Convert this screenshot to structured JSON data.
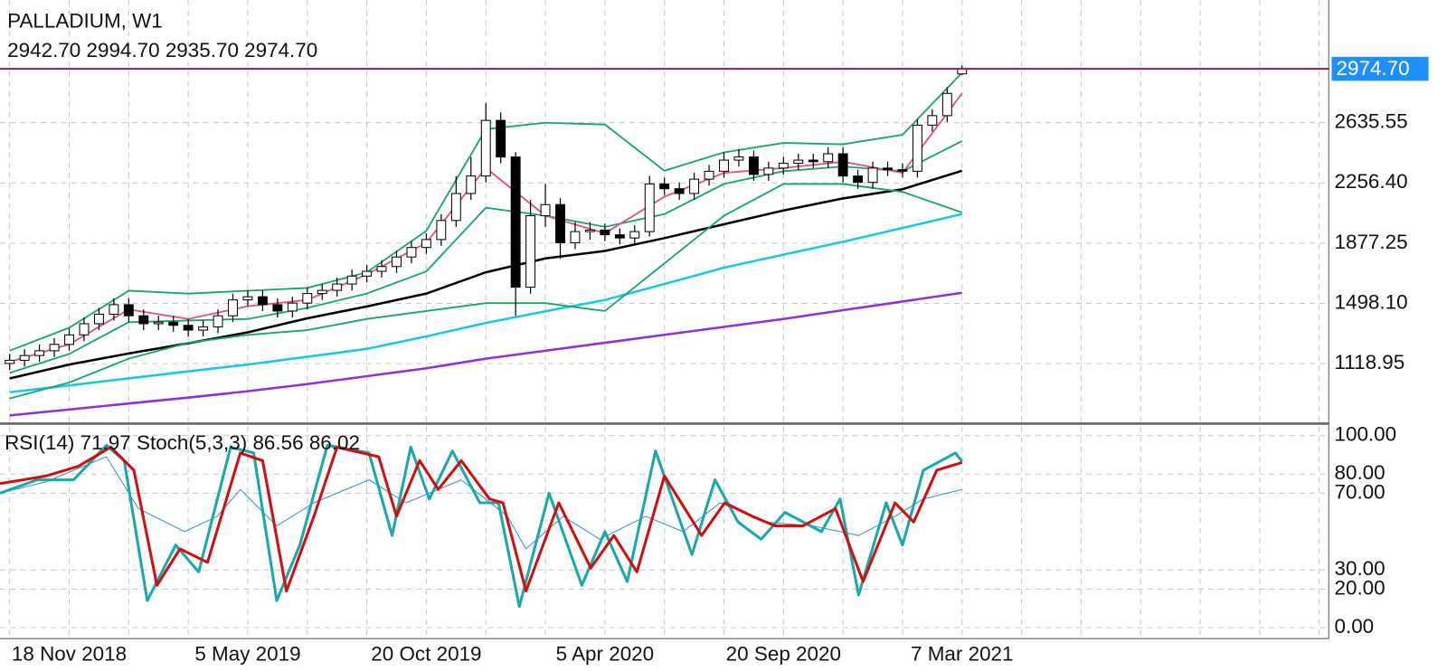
{
  "chart_data": [
    {
      "type": "candlestick",
      "title": "PALLADIUM, W1",
      "subtitle": "2942.70 2994.70 2935.70 2974.70",
      "x": [
        -8,
        -6,
        -4,
        -2,
        0,
        2,
        4,
        6,
        8,
        10,
        12,
        14,
        16,
        18,
        20,
        22,
        24,
        26,
        28,
        30,
        32,
        34,
        36,
        38,
        40,
        42,
        44,
        46,
        48,
        50,
        52,
        54,
        56,
        58,
        60,
        62,
        64,
        66,
        68,
        70,
        72,
        74,
        76,
        78,
        80,
        82,
        84,
        86,
        88,
        90,
        92,
        94,
        96,
        98,
        100,
        102,
        104,
        106,
        108,
        110,
        112,
        114,
        116,
        118,
        120
      ],
      "open": [
        1120,
        1140,
        1170,
        1200,
        1240,
        1300,
        1370,
        1430,
        1490,
        1420,
        1370,
        1380,
        1360,
        1330,
        1350,
        1420,
        1520,
        1540,
        1490,
        1450,
        1500,
        1560,
        1580,
        1620,
        1670,
        1700,
        1730,
        1790,
        1850,
        1900,
        2020,
        2190,
        2300,
        2650,
        2420,
        1600,
        2050,
        2120,
        1880,
        1950,
        1960,
        1930,
        1910,
        1950,
        2250,
        2220,
        2190,
        2280,
        2330,
        2400,
        2420,
        2310,
        2350,
        2380,
        2400,
        2390,
        2440,
        2300,
        2260,
        2350,
        2340,
        2330,
        2620,
        2680,
        2942.7
      ],
      "high": [
        1180,
        1210,
        1240,
        1280,
        1340,
        1410,
        1470,
        1530,
        1530,
        1460,
        1420,
        1420,
        1400,
        1390,
        1460,
        1560,
        1580,
        1580,
        1530,
        1540,
        1600,
        1620,
        1660,
        1710,
        1740,
        1770,
        1830,
        1890,
        1940,
        2060,
        2300,
        2420,
        2760,
        2700,
        2450,
        2150,
        2250,
        2160,
        2010,
        2010,
        2000,
        1970,
        1990,
        2300,
        2290,
        2260,
        2320,
        2370,
        2450,
        2470,
        2460,
        2390,
        2420,
        2440,
        2440,
        2480,
        2480,
        2340,
        2390,
        2390,
        2380,
        2660,
        2720,
        2860,
        2994.7
      ],
      "low": [
        1080,
        1100,
        1130,
        1160,
        1200,
        1260,
        1330,
        1390,
        1380,
        1330,
        1330,
        1320,
        1290,
        1290,
        1310,
        1380,
        1480,
        1450,
        1410,
        1410,
        1460,
        1520,
        1540,
        1580,
        1630,
        1660,
        1690,
        1750,
        1810,
        1860,
        1980,
        2150,
        2260,
        2380,
        1420,
        1560,
        1980,
        1780,
        1840,
        1900,
        1890,
        1870,
        1870,
        1920,
        2180,
        2150,
        2150,
        2240,
        2290,
        2360,
        2270,
        2270,
        2310,
        2340,
        2350,
        2350,
        2260,
        2220,
        2220,
        2300,
        2290,
        2290,
        2580,
        2640,
        2935.7
      ],
      "close": [
        1140,
        1170,
        1200,
        1240,
        1300,
        1370,
        1430,
        1490,
        1420,
        1370,
        1380,
        1360,
        1330,
        1350,
        1420,
        1520,
        1540,
        1490,
        1450,
        1500,
        1560,
        1580,
        1620,
        1670,
        1700,
        1730,
        1790,
        1850,
        1900,
        2020,
        2190,
        2300,
        2650,
        2420,
        1600,
        2050,
        2120,
        1880,
        1950,
        1960,
        1930,
        1910,
        1950,
        2250,
        2220,
        2190,
        2280,
        2330,
        2400,
        2420,
        2310,
        2350,
        2380,
        2400,
        2390,
        2440,
        2300,
        2260,
        2350,
        2340,
        2330,
        2620,
        2680,
        2820,
        2974.7
      ],
      "series": [
        {
          "color": "#000000",
          "x": [
            -8,
            0,
            8,
            16,
            24,
            32,
            40,
            48,
            56,
            64,
            72,
            80,
            88,
            96,
            104,
            112,
            120
          ],
          "values": [
            1026,
            1113,
            1183,
            1247,
            1316,
            1404,
            1479,
            1560,
            1694,
            1781,
            1828,
            1909,
            1996,
            2083,
            2159,
            2217,
            2333
          ]
        },
        {
          "color": "#1cc8e0",
          "x": [
            -8,
            0,
            8,
            16,
            24,
            32,
            40,
            48,
            56,
            64,
            72,
            80,
            88,
            96,
            104,
            112,
            120
          ],
          "values": [
            939,
            982,
            1026,
            1070,
            1113,
            1162,
            1212,
            1290,
            1375,
            1448,
            1520,
            1620,
            1723,
            1805,
            1886,
            1973,
            2060
          ]
        },
        {
          "color": "#9030d8",
          "x": [
            -8,
            0,
            8,
            16,
            24,
            32,
            40,
            48,
            56,
            64,
            72,
            80,
            88,
            96,
            104,
            112,
            120
          ],
          "values": [
            793,
            830,
            868,
            905,
            945,
            990,
            1040,
            1090,
            1150,
            1200,
            1250,
            1300,
            1350,
            1400,
            1455,
            1510,
            1565
          ]
        },
        {
          "color": "#1aa56a",
          "x": [
            -8,
            0,
            8,
            16,
            24,
            32,
            40,
            48,
            56,
            64,
            72,
            80,
            88,
            96,
            104,
            112,
            120
          ],
          "values": [
            1200,
            1345,
            1578,
            1560,
            1578,
            1595,
            1694,
            1955,
            2595,
            2635,
            2624,
            2333,
            2449,
            2508,
            2500,
            2560,
            2950
          ]
        },
        {
          "color": "#1aa56a",
          "x": [
            -8,
            0,
            8,
            16,
            24,
            32,
            40,
            48,
            56,
            64,
            72,
            80,
            88,
            96,
            104,
            112,
            120
          ],
          "values": [
            1060,
            1180,
            1380,
            1390,
            1400,
            1470,
            1560,
            1700,
            2100,
            2050,
            1980,
            2060,
            2250,
            2330,
            2360,
            2330,
            2520
          ]
        },
        {
          "color": "#1aa56a",
          "x": [
            -8,
            0,
            8,
            16,
            24,
            32,
            40,
            48,
            56,
            64,
            72,
            80,
            88,
            96,
            104,
            112,
            120
          ],
          "values": [
            900,
            1000,
            1150,
            1250,
            1300,
            1330,
            1400,
            1450,
            1500,
            1500,
            1450,
            1750,
            2050,
            2250,
            2250,
            2200,
            2070
          ]
        },
        {
          "color": "#e0508a",
          "x": [
            -8,
            0,
            8,
            16,
            24,
            32,
            40,
            48,
            56,
            64,
            72,
            80,
            88,
            96,
            104,
            112,
            120
          ],
          "values": [
            1130,
            1240,
            1460,
            1400,
            1480,
            1520,
            1680,
            1880,
            2350,
            2050,
            1940,
            2170,
            2320,
            2350,
            2390,
            2320,
            2820
          ]
        }
      ],
      "candle_up": "#ffffff",
      "candle_down": "#000000",
      "xlim": [
        -9.3,
        169.3
      ],
      "xticks": [
        {
          "value": 0,
          "label": "18 Nov 2018"
        },
        {
          "value": 24,
          "label": "5 May 2019"
        },
        {
          "value": 48,
          "label": "20 Oct 2019"
        },
        {
          "value": 72,
          "label": "5 Apr 2020"
        },
        {
          "value": 96,
          "label": "20 Sep 2020"
        },
        {
          "value": 120,
          "label": "7 Mar 2021"
        }
      ],
      "xgrid": [
        -8,
        0,
        8,
        16,
        24,
        32,
        40,
        48,
        56,
        64,
        72,
        80,
        88,
        96,
        104,
        112,
        120,
        128,
        136,
        144,
        152,
        160,
        168
      ],
      "ylim": [
        747,
        3408
      ],
      "yticks": [
        2635.55,
        {
          "value": 2256.4,
          "label": "2256.40"
        },
        1877.25,
        {
          "value": 1498.1,
          "label": "1498.10"
        },
        1118.95
      ],
      "last_price": {
        "value": 2974.7,
        "label": "2974.70",
        "color": "#8b1a6b",
        "box": "#1e8fff"
      },
      "grid": true
    },
    {
      "type": "line",
      "title": "RSI(14) 71.97 Stoch(5,3,3) 86.56 86.02",
      "series": [
        {
          "color": "#3a8fd0",
          "width": 1,
          "x": [
            -9.3,
            -3.1,
            5,
            9.3,
            15.5,
            19.9,
            23,
            27.9,
            32.9,
            40.3,
            45.3,
            52.7,
            58.9,
            61.4,
            66.4,
            71.3,
            77.5,
            82.5,
            87.5,
            93.7,
            99.9,
            106.1,
            111,
            114.8,
            120
          ],
          "values": [
            70,
            76,
            89,
            62,
            50,
            58,
            72,
            53,
            65,
            77,
            65,
            77,
            58,
            41,
            58,
            46,
            58,
            50,
            65,
            55,
            53,
            48,
            58,
            67,
            71.97
          ]
        },
        {
          "color": "#1aa8a8",
          "width": 3,
          "x": [
            -9.3,
            -4.3,
            0.6,
            5,
            7.4,
            10.5,
            14.3,
            17.4,
            21.7,
            24.8,
            27.9,
            31,
            34.7,
            40.3,
            43.4,
            45.9,
            48.4,
            51.5,
            55.2,
            57.7,
            60.5,
            64.5,
            68.9,
            72,
            75,
            78.8,
            83.7,
            86.8,
            89.9,
            93,
            96.2,
            101.1,
            103.6,
            106.1,
            109.8,
            112,
            114.8,
            119.1,
            120
          ],
          "values": [
            70,
            77,
            77,
            95,
            87,
            14,
            43,
            29,
            94,
            91,
            14,
            43,
            95,
            91,
            48,
            94,
            67,
            92,
            65,
            65,
            11,
            70,
            22,
            50,
            24,
            92,
            38,
            77,
            55,
            46,
            60,
            50,
            67,
            17,
            65,
            43,
            82,
            91,
            86.56
          ]
        },
        {
          "color": "#d01010",
          "width": 3,
          "x": [
            -9.3,
            -3.1,
            1.2,
            5.6,
            8.7,
            11.8,
            14.9,
            18.6,
            23,
            26,
            29.2,
            32.9,
            36,
            41.6,
            44,
            47.1,
            49.6,
            52.7,
            56.5,
            58.3,
            61.4,
            65.8,
            70.1,
            73.2,
            76.3,
            80,
            85,
            88.1,
            91.8,
            94.9,
            98.6,
            103,
            106.7,
            111,
            113.5,
            116.6,
            120
          ],
          "values": [
            75,
            79,
            84,
            94,
            82,
            22,
            41,
            34,
            91,
            87,
            19,
            58,
            94,
            89,
            58,
            87,
            72,
            87,
            67,
            65,
            19,
            65,
            31,
            48,
            29,
            79,
            48,
            65,
            58,
            53,
            53,
            62,
            24,
            65,
            55,
            82,
            86.02
          ]
        }
      ],
      "ylim": [
        -5.8,
        105.8
      ],
      "yticks": [
        {
          "value": 100,
          "label": "100.00"
        },
        {
          "value": 80,
          "label": "80.00"
        },
        {
          "value": 70,
          "label": "70.00"
        },
        {
          "value": 30,
          "label": "30.00"
        },
        {
          "value": 20,
          "label": "20.00"
        },
        {
          "value": 0,
          "label": "0.00"
        }
      ],
      "grid": true
    }
  ]
}
